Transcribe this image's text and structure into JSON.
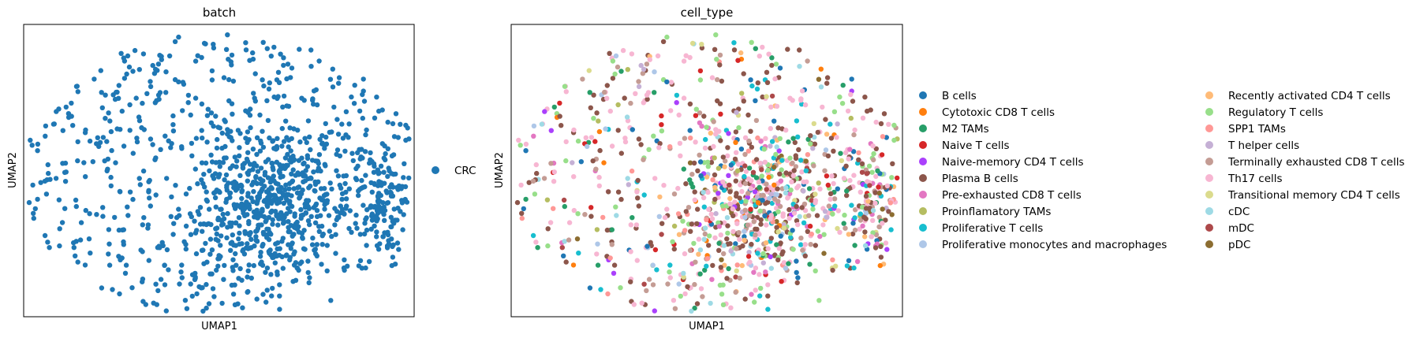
{
  "chart_data": [
    {
      "type": "scatter",
      "title": "batch",
      "xlabel": "UMAP1",
      "ylabel": "UMAP2",
      "xticks": "none",
      "yticks": "none",
      "legend_placement": "right",
      "categories": [
        {
          "name": "CRC",
          "color": "#1f77b4"
        }
      ]
    },
    {
      "type": "scatter",
      "title": "cell_type",
      "xlabel": "UMAP1",
      "ylabel": "UMAP2",
      "xticks": "none",
      "yticks": "none",
      "legend_placement": "right",
      "categories": [
        {
          "name": "B cells",
          "color": "#1f77b4",
          "share": 0.05
        },
        {
          "name": "Cytotoxic CD8 T cells",
          "color": "#ff7f0e",
          "share": 0.02
        },
        {
          "name": "M2 TAMs",
          "color": "#279e68",
          "share": 0.04
        },
        {
          "name": "Naive T cells",
          "color": "#d62728",
          "share": 0.02
        },
        {
          "name": "Naive-memory CD4 T cells",
          "color": "#aa40fc",
          "share": 0.03
        },
        {
          "name": "Plasma B cells",
          "color": "#8c564b",
          "share": 0.2
        },
        {
          "name": "Pre-exhausted CD8 T cells",
          "color": "#e377c2",
          "share": 0.03
        },
        {
          "name": "Proinflamatory TAMs",
          "color": "#b5bd61",
          "share": 0.02
        },
        {
          "name": "Proliferative T cells",
          "color": "#17becf",
          "share": 0.05
        },
        {
          "name": "Proliferative monocytes and macrophages",
          "color": "#aec7e8",
          "share": 0.02
        },
        {
          "name": "Recently activated CD4 T cells",
          "color": "#ffbb78",
          "share": 0.02
        },
        {
          "name": "Regulatory T cells",
          "color": "#98df8a",
          "share": 0.08
        },
        {
          "name": "SPP1 TAMs",
          "color": "#ff9896",
          "share": 0.02
        },
        {
          "name": "T helper cells",
          "color": "#c5b0d5",
          "share": 0.02
        },
        {
          "name": "Terminally exhausted CD8 T cells",
          "color": "#c49c94",
          "share": 0.1
        },
        {
          "name": "Th17 cells",
          "color": "#f7b6d2",
          "share": 0.22
        },
        {
          "name": "Transitional memory CD4 T cells",
          "color": "#dbdb8d",
          "share": 0.02
        },
        {
          "name": "cDC",
          "color": "#9edae5",
          "share": 0.02
        },
        {
          "name": "mDC",
          "color": "#ad494a",
          "share": 0.02
        },
        {
          "name": "pDC",
          "color": "#8c6d31",
          "share": 0.02
        }
      ]
    }
  ]
}
